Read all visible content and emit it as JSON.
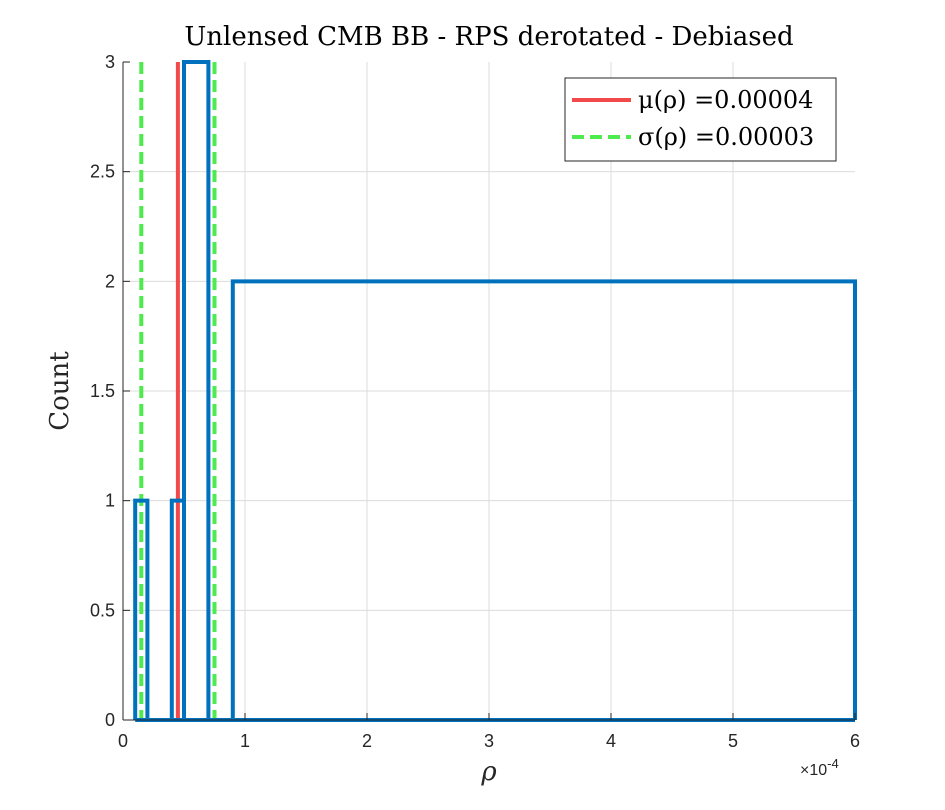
{
  "chart_data": {
    "type": "histogram",
    "title": "Unlensed CMB BB - RPS derotated - Debiased",
    "xlabel": "ρ",
    "ylabel": "Count",
    "x_exponent_label": "×10",
    "x_exponent_power": "-4",
    "xlim": [
      0,
      6
    ],
    "ylim": [
      0,
      3
    ],
    "xticks": [
      0,
      1,
      2,
      3,
      4,
      5,
      6
    ],
    "xtick_labels": [
      "0",
      "1",
      "2",
      "3",
      "4",
      "5",
      "6"
    ],
    "yticks": [
      0,
      0.5,
      1,
      1.5,
      2,
      2.5,
      3
    ],
    "ytick_labels": [
      "0",
      "0.5",
      "1",
      "1.5",
      "2",
      "2.5",
      "3"
    ],
    "grid": true,
    "legend_position": "top-right",
    "bin_edges": [
      0.1,
      0.2,
      0.4,
      0.5,
      0.7,
      0.9,
      6.0
    ],
    "counts": [
      1,
      0,
      1,
      3,
      0,
      2
    ],
    "series_color": "#0072BD",
    "mean": {
      "label": "μ(ρ) =0.00004",
      "x": 0.45,
      "color": "#F24A4A"
    },
    "sigma": {
      "label": "σ(ρ) =0.00003",
      "x": [
        0.15,
        0.75
      ],
      "color": "#4DEB4D"
    }
  }
}
